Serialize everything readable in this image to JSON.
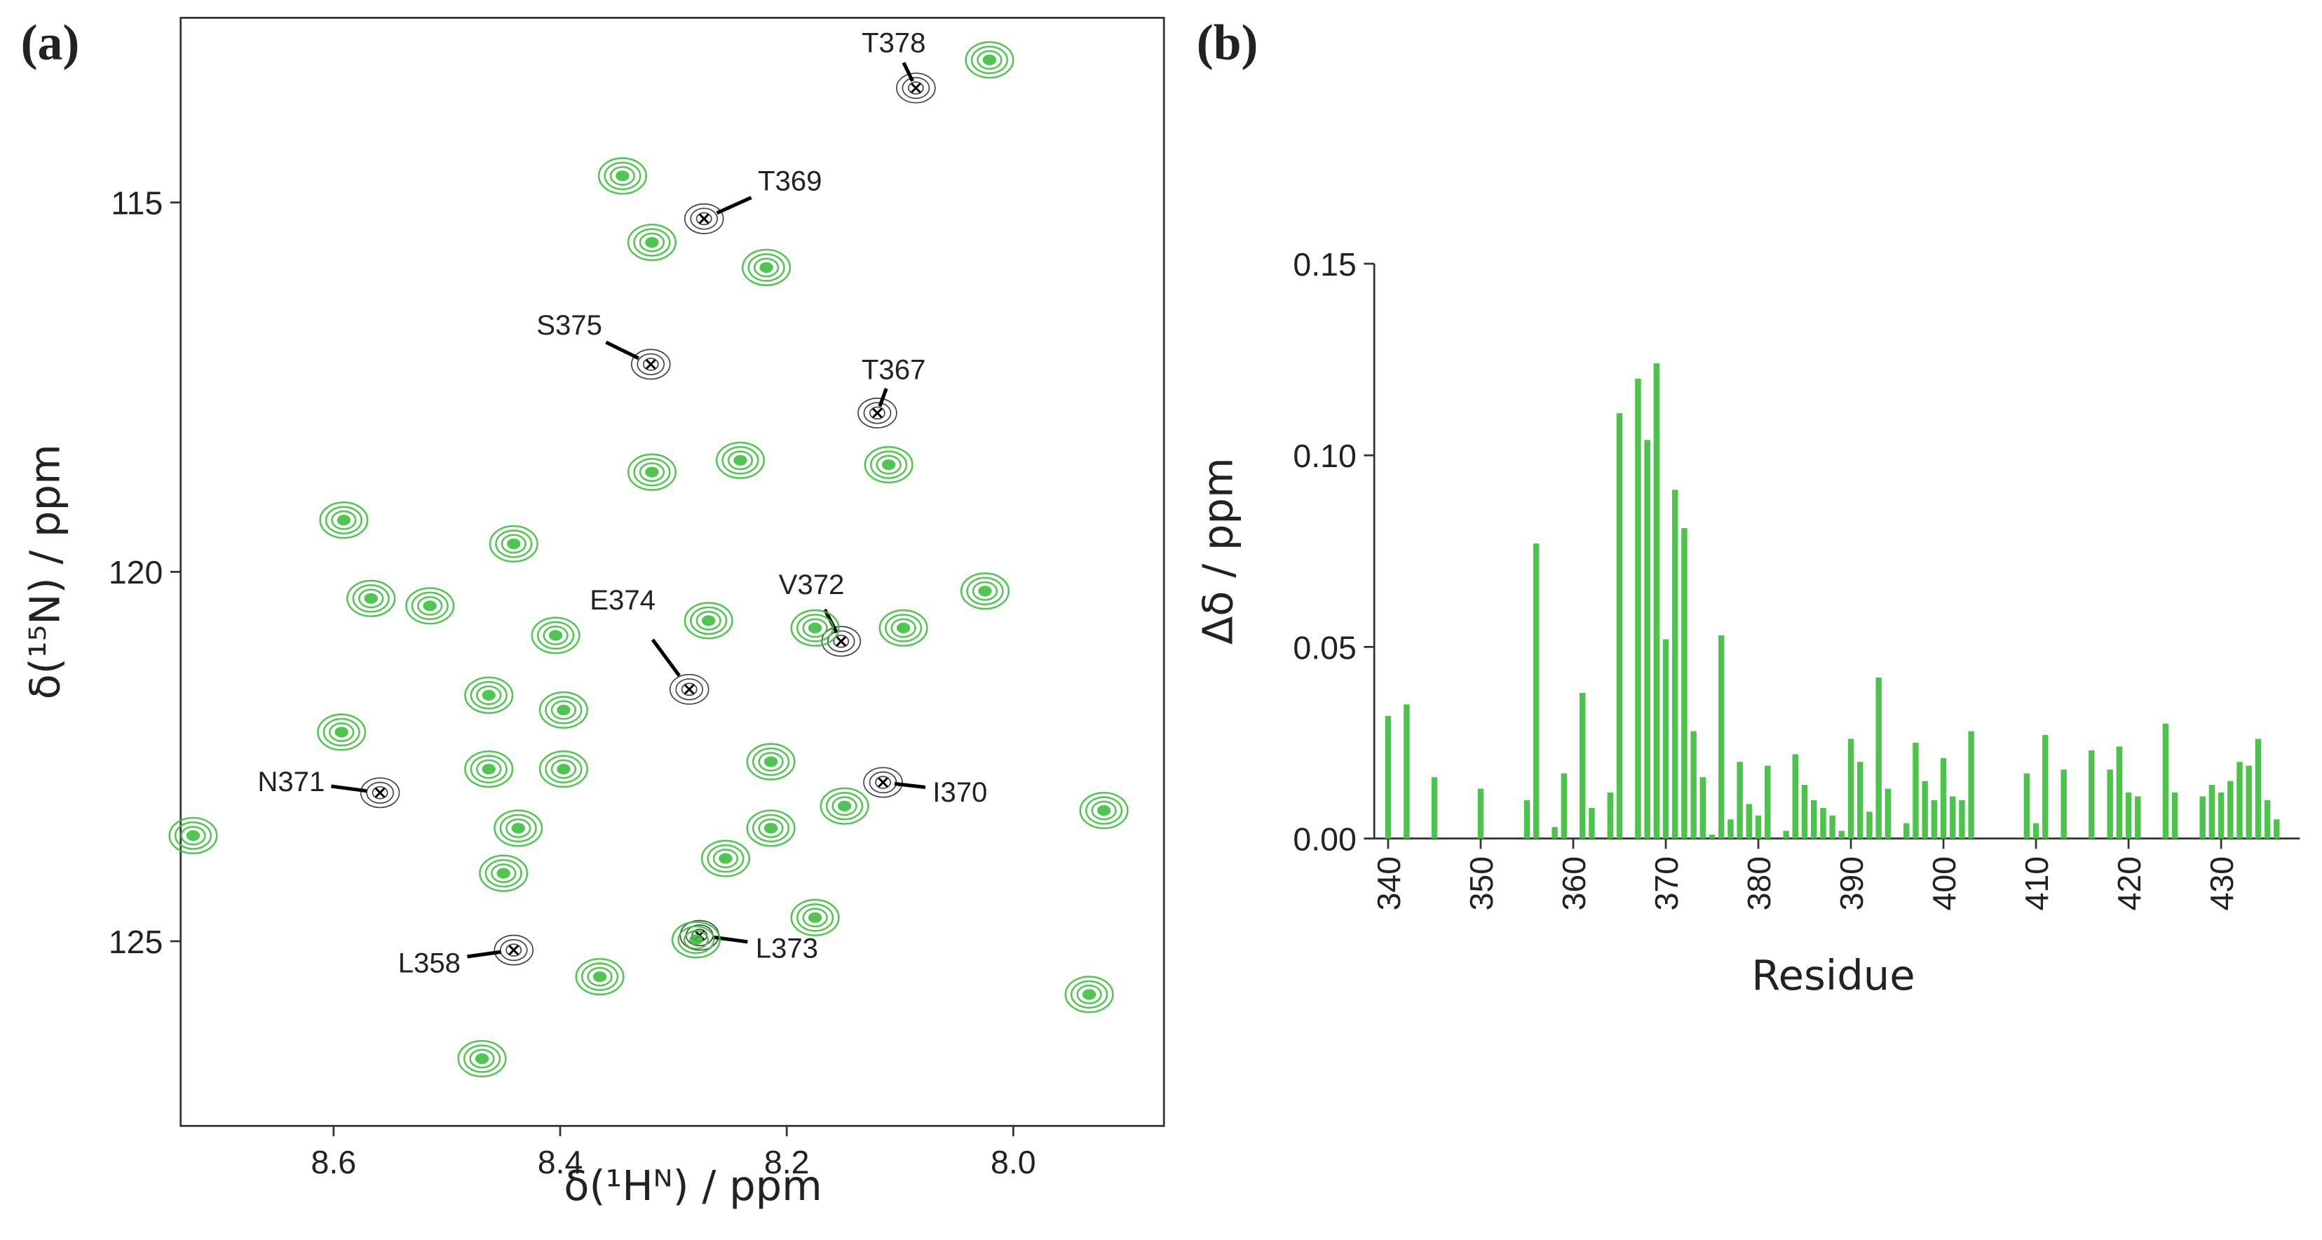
{
  "chart_data": [
    {
      "type": "scatter",
      "panel_label": "(a)",
      "x_label": "δ(¹Hᴺ) / ppm",
      "y_label": "δ(¹⁵N) / ppm",
      "xlim": [
        8.735,
        7.867
      ],
      "ylim": [
        127.5,
        112.5
      ],
      "xticks": [
        {
          "value": 8.6,
          "label": "8.6"
        },
        {
          "value": 8.4,
          "label": "8.4"
        },
        {
          "value": 8.2,
          "label": "8.2"
        },
        {
          "value": 8,
          "label": "8.0"
        }
      ],
      "yticks": [
        115,
        120,
        125
      ],
      "color": "#3fbf3f",
      "peaks": {
        "x": [
          8.021,
          8.345,
          8.319,
          8.218,
          8.591,
          8.441,
          8.319,
          8.11,
          8.241,
          8.567,
          8.515,
          8.404,
          8.269,
          8.175,
          8.097,
          8.025,
          8.593,
          8.463,
          8.397,
          8.463,
          8.397,
          8.437,
          8.45,
          8.214,
          8.149,
          8.254,
          8.214,
          8.28,
          8.365,
          8.469,
          8.724,
          7.92,
          7.933,
          8.175
        ],
        "y": [
          113.07,
          114.64,
          115.54,
          115.88,
          119.3,
          119.62,
          118.65,
          118.55,
          118.49,
          120.36,
          120.46,
          120.86,
          120.66,
          120.76,
          120.76,
          120.26,
          122.17,
          121.67,
          121.87,
          122.67,
          122.67,
          123.47,
          124.08,
          122.57,
          123.17,
          123.88,
          123.47,
          124.98,
          125.48,
          126.59,
          123.57,
          123.23,
          125.72,
          124.68
        ]
      },
      "annotations": [
        {
          "text": "T378",
          "x": 8.086,
          "y": 113.45
        },
        {
          "text": "T369",
          "x": 8.273,
          "y": 115.22
        },
        {
          "text": "S375",
          "x": 8.32,
          "y": 117.19
        },
        {
          "text": "T367",
          "x": 8.12,
          "y": 117.85
        },
        {
          "text": "V372",
          "x": 8.152,
          "y": 120.94
        },
        {
          "text": "E374",
          "x": 8.286,
          "y": 121.59
        },
        {
          "text": "N371",
          "x": 8.559,
          "y": 122.99
        },
        {
          "text": "I370",
          "x": 8.115,
          "y": 122.85
        },
        {
          "text": "L358",
          "x": 8.441,
          "y": 125.12
        },
        {
          "text": "L373",
          "x": 8.277,
          "y": 124.92
        }
      ]
    },
    {
      "type": "bar",
      "panel_label": "(b)",
      "x_label": "Residue",
      "y_label": "Δδ / ppm",
      "color": "#4cc44c",
      "xlim": [
        338.5,
        438.5
      ],
      "ylim": [
        0,
        0.15
      ],
      "xticks": [
        340,
        350,
        360,
        370,
        380,
        390,
        400,
        410,
        420,
        430
      ],
      "yticks": [
        {
          "value": 0,
          "label": "0.00"
        },
        0.05,
        {
          "value": 0.1,
          "label": "0.10"
        },
        0.15
      ],
      "x": [
        340,
        342,
        345,
        350,
        355,
        356,
        358,
        359,
        361,
        362,
        364,
        365,
        367,
        368,
        369,
        370,
        371,
        372,
        373,
        374,
        375,
        376,
        377,
        378,
        379,
        380,
        381,
        383,
        384,
        385,
        386,
        387,
        388,
        389,
        390,
        391,
        392,
        393,
        394,
        396,
        397,
        398,
        399,
        400,
        401,
        402,
        403,
        409,
        410,
        411,
        413,
        416,
        418,
        419,
        420,
        421,
        424,
        425,
        428,
        429,
        430,
        431,
        432,
        433,
        434,
        435,
        436
      ],
      "values": [
        0.032,
        0.035,
        0.016,
        0.013,
        0.01,
        0.077,
        0.003,
        0.017,
        0.038,
        0.008,
        0.012,
        0.111,
        0.12,
        0.104,
        0.124,
        0.052,
        0.091,
        0.081,
        0.028,
        0.016,
        0.001,
        0.053,
        0.005,
        0.02,
        0.009,
        0.006,
        0.019,
        0.002,
        0.022,
        0.014,
        0.01,
        0.008,
        0.006,
        0.002,
        0.026,
        0.02,
        0.007,
        0.042,
        0.013,
        0.004,
        0.025,
        0.015,
        0.01,
        0.021,
        0.011,
        0.01,
        0.028,
        0.017,
        0.004,
        0.027,
        0.018,
        0.023,
        0.018,
        0.024,
        0.012,
        0.011,
        0.03,
        0.012,
        0.011,
        0.014,
        0.012,
        0.015,
        0.02,
        0.019,
        0.026,
        0.01,
        0.005
      ]
    }
  ]
}
